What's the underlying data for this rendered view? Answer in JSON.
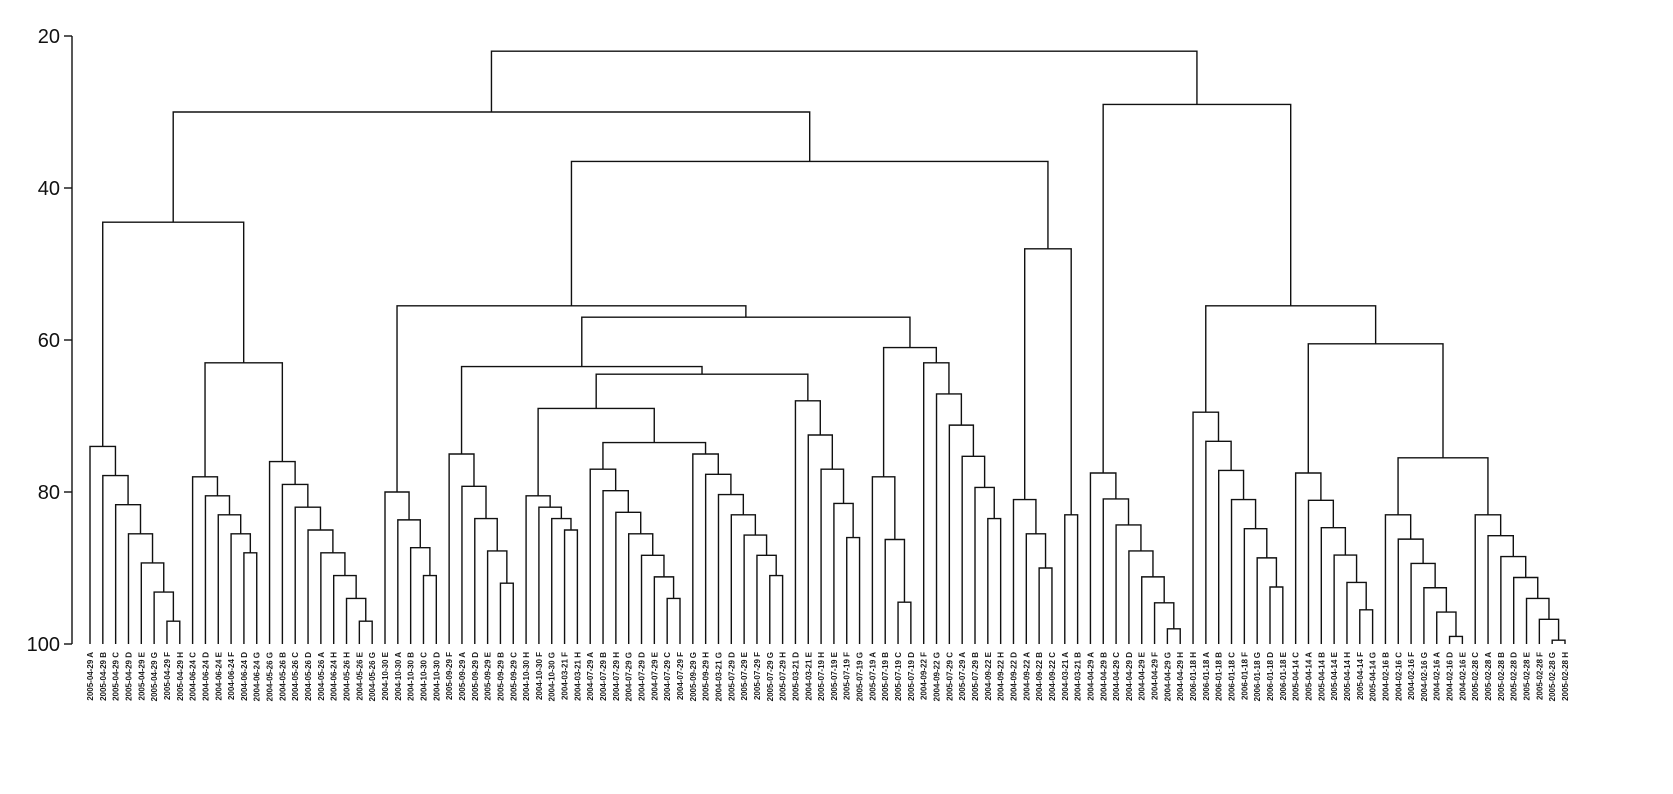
{
  "chart_data": {
    "type": "dendrogram",
    "y_axis": {
      "ticks": [
        "20",
        "40",
        "60",
        "80",
        "100"
      ],
      "range": [
        20,
        100
      ]
    },
    "leaves": [
      "2005-04-29 A",
      "2005-04-29 B",
      "2005-04-29 C",
      "2005-04-29 D",
      "2005-04-29 E",
      "2005-04-29 G",
      "2005-04-29 F",
      "2005-04-29 H",
      "2004-06-24 C",
      "2004-06-24 D",
      "2004-06-24 E",
      "2004-06-24 F",
      "2004-06-24 D",
      "2004-06-24 G",
      "2004-05-26 G",
      "2004-05-26 B",
      "2004-05-26 C",
      "2004-05-26 D",
      "2004-05-26 A",
      "2004-06-24 H",
      "2004-05-26 H",
      "2004-05-26 E",
      "2004-05-26 G",
      "2004-10-30 E",
      "2004-10-30 A",
      "2004-10-30 B",
      "2004-10-30 C",
      "2004-10-30 D",
      "2005-09-29 F",
      "2005-09-29 A",
      "2005-09-29 D",
      "2005-09-29 E",
      "2005-09-29 B",
      "2005-09-29 C",
      "2004-10-30 H",
      "2004-10-30 F",
      "2004-10-30 G",
      "2004-03-21 F",
      "2004-03-21 H",
      "2004-07-29 A",
      "2004-07-29 B",
      "2004-07-29 H",
      "2004-07-29 G",
      "2004-07-29 D",
      "2004-07-29 E",
      "2004-07-29 C",
      "2004-07-29 F",
      "2005-09-29 G",
      "2005-09-29 H",
      "2004-03-21 G",
      "2005-07-29 D",
      "2005-07-29 E",
      "2005-07-29 F",
      "2005-07-29 G",
      "2005-07-29 H",
      "2005-03-21 D",
      "2004-03-21 E",
      "2005-07-19 H",
      "2005-07-19 E",
      "2005-07-19 F",
      "2005-07-19 G",
      "2005-07-19 A",
      "2005-07-19 B",
      "2005-07-19 C",
      "2005-07-19 D",
      "2004-09-22 F",
      "2004-09-22 G",
      "2005-07-29 C",
      "2005-07-29 A",
      "2005-07-29 B",
      "2004-09-22 E",
      "2004-09-22 H",
      "2004-09-22 D",
      "2004-09-22 A",
      "2004-09-22 B",
      "2004-09-22 C",
      "2004-03-21 A",
      "2004-03-21 B",
      "2004-04-29 A",
      "2004-04-29 B",
      "2004-04-29 C",
      "2004-04-29 D",
      "2004-04-29 E",
      "2004-04-29 F",
      "2004-04-29 G",
      "2004-04-29 H",
      "2006-01-18 H",
      "2006-01-18 A",
      "2006-01-18 B",
      "2006-01-18 C",
      "2006-01-18 F",
      "2006-01-18 G",
      "2006-01-18 D",
      "2006-01-18 E",
      "2005-04-14 C",
      "2005-04-14 A",
      "2005-04-14 B",
      "2005-04-14 E",
      "2005-04-14 H",
      "2005-04-14 F",
      "2005-04-14 G",
      "2004-02-16 B",
      "2004-02-16 C",
      "2004-02-16 F",
      "2004-02-16 G",
      "2004-02-16 A",
      "2004-02-16 D",
      "2004-02-16 E",
      "2005-02-28 C",
      "2005-02-28 A",
      "2005-02-28 B",
      "2005-02-28 D",
      "2005-02-28 E",
      "2005-02-28 F",
      "2005-02-28 G",
      "2005-02-28 H"
    ]
  }
}
